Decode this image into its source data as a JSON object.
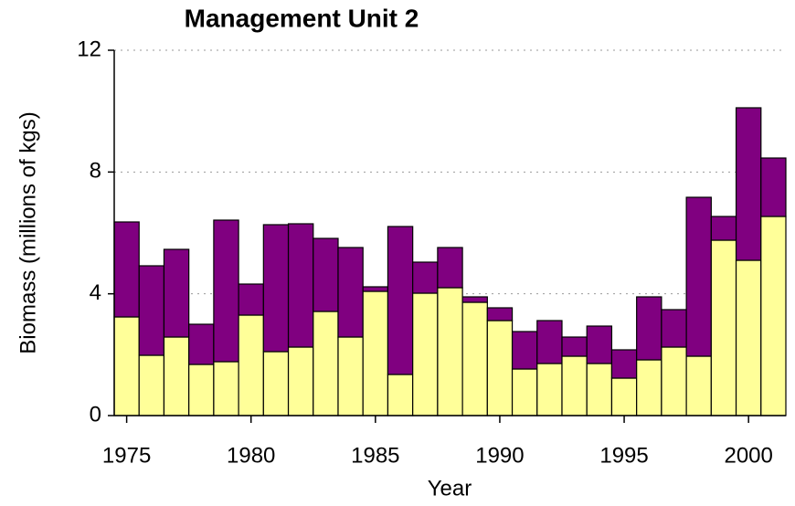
{
  "chart_data": {
    "type": "stacked-bar",
    "title": "Management Unit 2",
    "x_label": "Year",
    "y_label": "Biomass (millions of kgs)",
    "x": [
      1975,
      1976,
      1977,
      1978,
      1979,
      1980,
      1981,
      1982,
      1983,
      1984,
      1985,
      1986,
      1987,
      1988,
      1989,
      1990,
      1991,
      1992,
      1993,
      1994,
      1995,
      1996,
      1997,
      1998,
      1999,
      2000,
      2001
    ],
    "series": [
      {
        "color": "#ffff99",
        "values": [
          3.24,
          1.98,
          2.58,
          1.68,
          1.77,
          3.3,
          2.1,
          2.25,
          3.42,
          2.58,
          4.08,
          1.35,
          4.02,
          4.2,
          3.72,
          3.12,
          1.53,
          1.71,
          1.95,
          1.71,
          1.23,
          1.83,
          2.25,
          1.95,
          5.76,
          5.1,
          6.54
        ]
      },
      {
        "color": "#800080",
        "values": [
          3.12,
          2.94,
          2.88,
          1.32,
          4.65,
          1.02,
          4.17,
          4.05,
          2.4,
          2.94,
          0.15,
          4.86,
          1.02,
          1.32,
          0.18,
          0.42,
          1.23,
          1.41,
          0.63,
          1.23,
          0.93,
          2.07,
          1.23,
          5.22,
          0.78,
          5.01,
          1.92
        ]
      }
    ],
    "xlim": [
      1974.5,
      2001.5
    ],
    "xticks": [
      1975,
      1980,
      1985,
      1990,
      1995,
      2000
    ],
    "ylim": [
      0,
      12
    ],
    "yticks": [
      0,
      4,
      8,
      12
    ],
    "grid": true
  }
}
